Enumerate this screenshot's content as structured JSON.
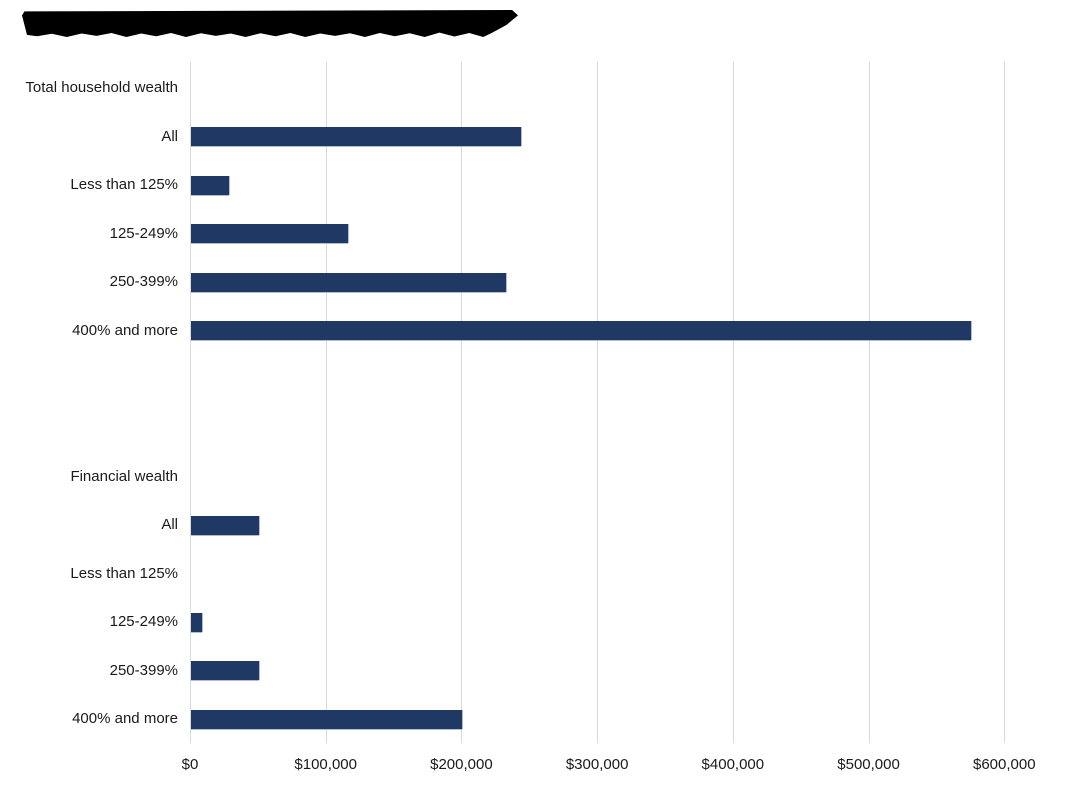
{
  "title": {
    "text": "",
    "state": "redacted-black-highlight"
  },
  "chart_data": {
    "type": "bar",
    "orientation": "horizontal",
    "title": "",
    "xlabel": "",
    "ylabel": "",
    "unit": "USD",
    "xlim": [
      0,
      600000
    ],
    "grid": true,
    "bar_color": "#1f3864",
    "gridline_color": "#d9d9d9",
    "x_axis": {
      "tick_values": [
        0,
        100000,
        200000,
        300000,
        400000,
        500000,
        600000
      ],
      "tick_labels": [
        "$0",
        "$100,000",
        "$200,000",
        "$300,000",
        "$400,000",
        "$500,000",
        "$600,000"
      ]
    },
    "sections": [
      {
        "header": "Total household wealth",
        "rows": [
          {
            "label": "All",
            "value": 243000
          },
          {
            "label": "Less than 125%",
            "value": 28000
          },
          {
            "label": "125-249%",
            "value": 116000
          },
          {
            "label": "250-399%",
            "value": 232000
          },
          {
            "label": "400% and more",
            "value": 575000
          }
        ]
      },
      {
        "header": "Financial wealth",
        "rows": [
          {
            "label": "All",
            "value": 50000
          },
          {
            "label": "Less than 125%",
            "value": 0
          },
          {
            "label": "125-249%",
            "value": 8000
          },
          {
            "label": "250-399%",
            "value": 50000
          },
          {
            "label": "400% and more",
            "value": 200000
          }
        ]
      }
    ]
  }
}
